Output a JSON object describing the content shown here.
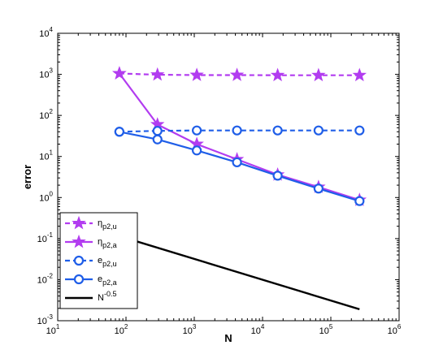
{
  "chart_data": {
    "type": "line",
    "title": "",
    "xlabel": "N",
    "ylabel": "error",
    "xscale": "log",
    "yscale": "log",
    "xlim": [
      10,
      1000000
    ],
    "ylim": [
      0.001,
      10000
    ],
    "grid": false,
    "legend_position": "bottom-left",
    "x_ticks": [
      10,
      100,
      1000,
      10000,
      100000,
      1000000
    ],
    "y_ticks": [
      0.001,
      0.01,
      0.1,
      1,
      10,
      100,
      1000,
      10000
    ],
    "x_tick_labels": [
      {
        "base": "10",
        "exp": "1"
      },
      {
        "base": "10",
        "exp": "2"
      },
      {
        "base": "10",
        "exp": "3"
      },
      {
        "base": "10",
        "exp": "4"
      },
      {
        "base": "10",
        "exp": "5"
      },
      {
        "base": "10",
        "exp": "6"
      }
    ],
    "y_tick_labels": [
      {
        "base": "10",
        "exp": "-3"
      },
      {
        "base": "10",
        "exp": "-2"
      },
      {
        "base": "10",
        "exp": "-1"
      },
      {
        "base": "10",
        "exp": "0"
      },
      {
        "base": "10",
        "exp": "1"
      },
      {
        "base": "10",
        "exp": "2"
      },
      {
        "base": "10",
        "exp": "3"
      },
      {
        "base": "10",
        "exp": "4"
      }
    ],
    "series": [
      {
        "name_main": "η",
        "name_sub": "p2,u",
        "color": "#b23cf0",
        "dash": "dashed",
        "marker": "star",
        "x": [
          80,
          289,
          1089,
          4225,
          16641,
          66049,
          263169
        ],
        "y": [
          1050,
          980,
          960,
          960,
          950,
          950,
          950
        ]
      },
      {
        "name_main": "η",
        "name_sub": "p2,a",
        "color": "#b23cf0",
        "dash": "solid",
        "marker": "star",
        "x": [
          80,
          289,
          1089,
          4225,
          16641,
          66049,
          263169
        ],
        "y": [
          1050,
          60,
          20,
          8.5,
          3.6,
          1.8,
          0.87
        ]
      },
      {
        "name_main": "e",
        "name_sub": "p2,u",
        "color": "#1f5ee8",
        "dash": "dashed",
        "marker": "circle",
        "x": [
          80,
          289,
          1089,
          4225,
          16641,
          66049,
          263169
        ],
        "y": [
          40,
          42,
          43,
          43,
          43,
          43,
          43
        ]
      },
      {
        "name_main": "e",
        "name_sub": "p2,a",
        "color": "#1f5ee8",
        "dash": "solid",
        "marker": "circle",
        "x": [
          80,
          289,
          1089,
          4225,
          16641,
          66049,
          263169
        ],
        "y": [
          40,
          26,
          14,
          7.2,
          3.4,
          1.65,
          0.82
        ]
      },
      {
        "name_main": "N",
        "name_sup": "-0.5",
        "color": "#000000",
        "dash": "solid",
        "marker": "none",
        "x": [
          80,
          263169
        ],
        "y": [
          0.115,
          0.0019
        ]
      }
    ]
  }
}
